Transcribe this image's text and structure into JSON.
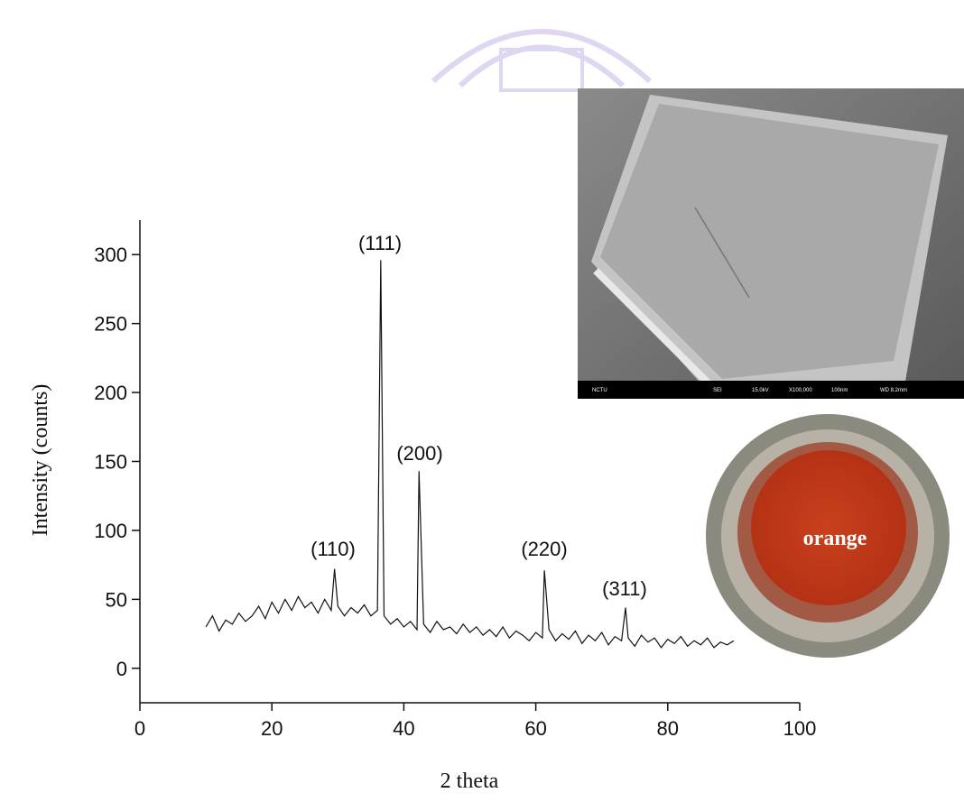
{
  "chart_data": {
    "type": "line",
    "x_label": "2 theta",
    "y_label": "Intensity (counts)",
    "xlim": [
      0,
      100
    ],
    "xticks": [
      0,
      20,
      40,
      60,
      80,
      100
    ],
    "ylim": [
      -25,
      325
    ],
    "yticks": [
      0,
      50,
      100,
      150,
      200,
      250,
      300
    ],
    "series": [
      {
        "color": "#111111",
        "x": [
          10,
          11,
          12,
          13,
          14,
          15,
          16,
          17,
          18,
          19,
          20,
          21,
          22,
          23,
          24,
          25,
          26,
          27,
          28,
          29,
          29.5,
          30,
          31,
          32,
          33,
          34,
          35,
          36,
          36.5,
          37,
          38,
          39,
          40,
          41,
          42,
          42.3,
          43,
          44,
          45,
          46,
          47,
          48,
          49,
          50,
          51,
          52,
          53,
          54,
          55,
          56,
          57,
          58,
          59,
          60,
          61,
          61.3,
          62,
          63,
          64,
          65,
          66,
          67,
          68,
          69,
          70,
          71,
          72,
          73,
          73.6,
          74,
          75,
          76,
          77,
          78,
          79,
          80,
          81,
          82,
          83,
          84,
          85,
          86,
          87,
          88,
          89,
          90
        ],
        "values": [
          30,
          38,
          27,
          35,
          32,
          40,
          34,
          38,
          45,
          36,
          48,
          40,
          50,
          42,
          52,
          44,
          48,
          40,
          50,
          42,
          72,
          45,
          38,
          44,
          40,
          46,
          38,
          42,
          296,
          38,
          32,
          36,
          30,
          34,
          28,
          143,
          32,
          26,
          34,
          28,
          30,
          25,
          32,
          26,
          30,
          24,
          28,
          23,
          30,
          22,
          27,
          24,
          20,
          26,
          22,
          71,
          28,
          20,
          25,
          21,
          27,
          18,
          24,
          20,
          26,
          17,
          23,
          20,
          44,
          22,
          16,
          24,
          19,
          22,
          15,
          21,
          18,
          23,
          16,
          20,
          17,
          22,
          15,
          19,
          17,
          20
        ]
      }
    ],
    "annotations": [
      "(110)",
      "(111)",
      "(200)",
      "(220)",
      "(311)"
    ],
    "photo_label": "orange",
    "sem_bar": [
      "NCTU",
      "SEI",
      "15.0kV",
      "X100,000",
      "100nm",
      "WD 8.2mm"
    ]
  }
}
